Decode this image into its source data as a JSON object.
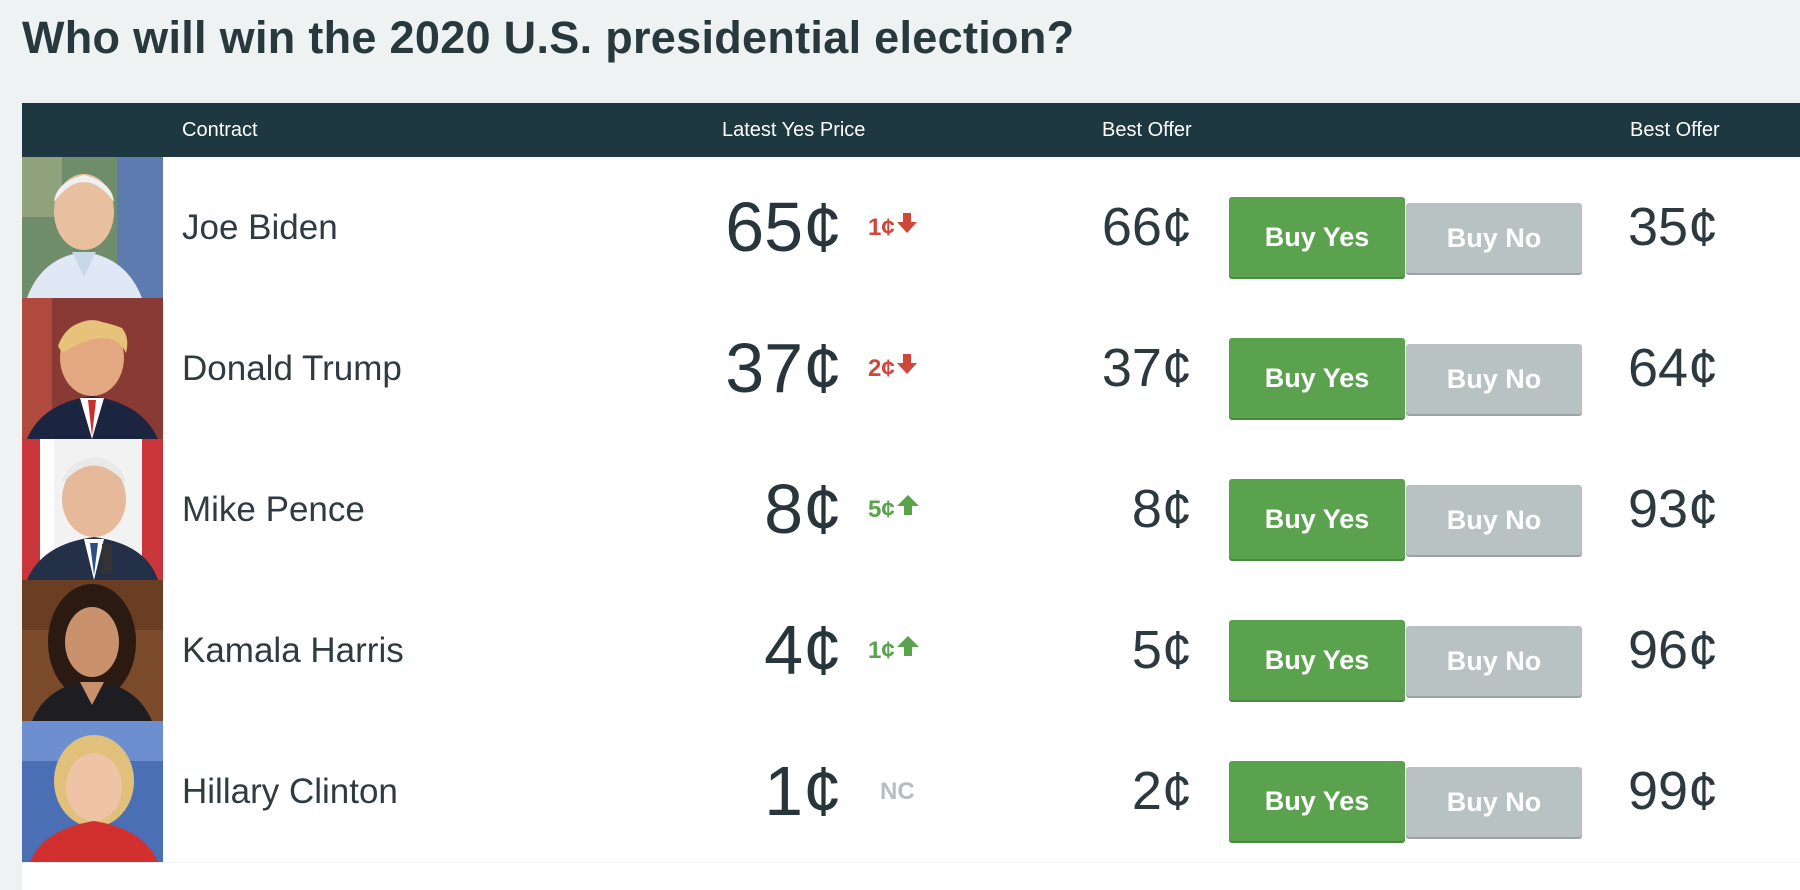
{
  "page": {
    "title": "Who will win the 2020 U.S. presidential election?"
  },
  "table": {
    "headers": {
      "contract": "Contract",
      "latest_yes_price": "Latest Yes Price",
      "best_offer_yes": "Best Offer",
      "best_offer_no": "Best Offer"
    },
    "rows": [
      {
        "name": "Joe Biden",
        "price": "65¢",
        "change": "1¢",
        "direction": "down",
        "offer_yes": "66¢",
        "buy_yes": "Buy Yes",
        "buy_no": "Buy No",
        "offer_no": "35¢"
      },
      {
        "name": "Donald Trump",
        "price": "37¢",
        "change": "2¢",
        "direction": "down",
        "offer_yes": "37¢",
        "buy_yes": "Buy Yes",
        "buy_no": "Buy No",
        "offer_no": "64¢"
      },
      {
        "name": "Mike Pence",
        "price": "8¢",
        "change": "5¢",
        "direction": "up",
        "offer_yes": "8¢",
        "buy_yes": "Buy Yes",
        "buy_no": "Buy No",
        "offer_no": "93¢"
      },
      {
        "name": "Kamala Harris",
        "price": "4¢",
        "change": "1¢",
        "direction": "up",
        "offer_yes": "5¢",
        "buy_yes": "Buy Yes",
        "buy_no": "Buy No",
        "offer_no": "96¢"
      },
      {
        "name": "Hillary Clinton",
        "price": "1¢",
        "change": "NC",
        "direction": "none",
        "offer_yes": "2¢",
        "buy_yes": "Buy Yes",
        "buy_no": "Buy No",
        "offer_no": "99¢"
      }
    ]
  },
  "colors": {
    "header_bg": "#1d3841",
    "buy_yes": "#5ba24f",
    "buy_no": "#b9c2c3",
    "change_down": "#d0463b",
    "change_up": "#5ba24c",
    "change_none": "#b4bdc1"
  },
  "icons": {
    "down": "arrow-down-icon",
    "up": "arrow-up-icon"
  }
}
